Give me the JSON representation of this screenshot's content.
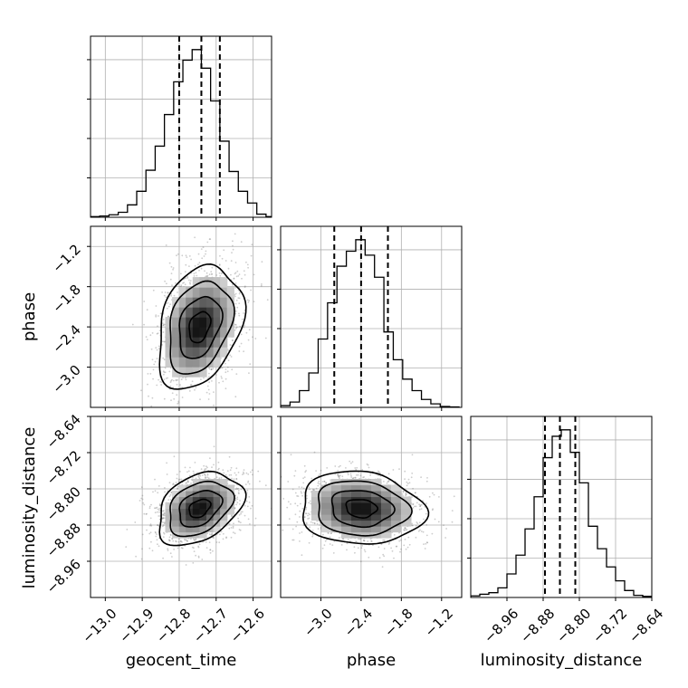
{
  "chart_data": {
    "type": "corner",
    "parameters": [
      "geocent_time",
      "phase",
      "luminosity_distance"
    ],
    "axis_labels": {
      "geocent_time": "geocent_time",
      "phase": "phase",
      "luminosity_distance": "luminosity_distance"
    },
    "ranges": {
      "geocent_time": [
        -13.04,
        -12.55
      ],
      "phase": [
        -3.6,
        -0.9
      ],
      "luminosity_distance": [
        -9.04,
        -8.64
      ]
    },
    "ticks": {
      "geocent_time": [
        -13.0,
        -12.9,
        -12.8,
        -12.7,
        -12.6
      ],
      "phase": [
        -3.0,
        -2.4,
        -1.8,
        -1.2
      ],
      "luminosity_distance": [
        -8.96,
        -8.88,
        -8.8,
        -8.72,
        -8.64
      ]
    },
    "tick_labels": {
      "geocent_time": [
        "−13.0",
        "−12.9",
        "−12.8",
        "−12.7",
        "−12.6"
      ],
      "phase": [
        "−3.0",
        "−2.4",
        "−1.8",
        "−1.2"
      ],
      "luminosity_distance": [
        "−8.96",
        "−8.88",
        "−8.80",
        "−8.72",
        "−8.64"
      ]
    },
    "quantiles": {
      "geocent_time": [
        -12.8,
        -12.74,
        -12.69
      ],
      "phase": [
        -2.8,
        -2.4,
        -2.0
      ],
      "luminosity_distance": [
        -8.876,
        -8.843,
        -8.809
      ]
    },
    "means": {
      "geocent_time": -12.745,
      "phase": -2.4,
      "luminosity_distance": -8.843
    },
    "stds": {
      "geocent_time": 0.05,
      "phase": 0.4,
      "luminosity_distance": 0.035
    },
    "correlations": {
      "phase|geocent_time": 0.3,
      "luminosity_distance|geocent_time": 0.35,
      "luminosity_distance|phase": -0.1
    },
    "histograms": {
      "geocent_time": {
        "edges": [
          -13.04,
          -13.015,
          -12.99,
          -12.965,
          -12.94,
          -12.915,
          -12.89,
          -12.865,
          -12.84,
          -12.815,
          -12.79,
          -12.765,
          -12.74,
          -12.715,
          -12.69,
          -12.665,
          -12.64,
          -12.615,
          -12.59,
          -12.565,
          -12.54
        ],
        "counts": [
          1,
          2,
          4,
          8,
          20,
          42,
          76,
          115,
          166,
          219,
          254,
          271,
          241,
          188,
          123,
          74,
          42,
          23,
          5,
          1
        ]
      },
      "phase": {
        "edges": [
          -3.6,
          -3.46,
          -3.32,
          -3.18,
          -3.04,
          -2.9,
          -2.76,
          -2.62,
          -2.48,
          -2.34,
          -2.2,
          -2.06,
          -1.92,
          -1.78,
          -1.64,
          -1.5,
          -1.36,
          -1.22,
          -1.08,
          -0.94
        ],
        "counts": [
          4,
          12,
          38,
          78,
          155,
          237,
          320,
          354,
          380,
          345,
          295,
          171,
          108,
          64,
          38,
          18,
          8,
          2,
          1
        ]
      },
      "luminosity_distance": {
        "edges": [
          -9.04,
          -9.02,
          -9.0,
          -8.98,
          -8.96,
          -8.94,
          -8.92,
          -8.9,
          -8.88,
          -8.86,
          -8.84,
          -8.82,
          -8.8,
          -8.78,
          -8.76,
          -8.74,
          -8.72,
          -8.7,
          -8.68,
          -8.66,
          -8.64
        ],
        "counts": [
          3,
          6,
          9,
          18,
          44,
          79,
          128,
          188,
          261,
          301,
          313,
          271,
          214,
          133,
          91,
          57,
          31,
          13,
          4,
          2
        ]
      }
    },
    "contour_levels_sigma": [
      0.5,
      1.0,
      1.5,
      2.0
    ],
    "grid": true
  }
}
